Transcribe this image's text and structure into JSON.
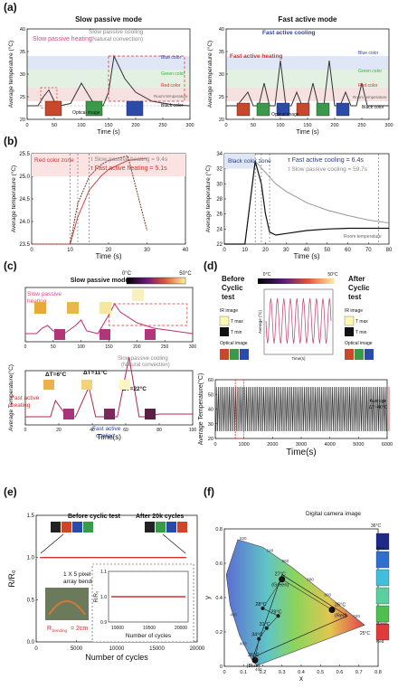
{
  "panel_labels": {
    "a": "(a)",
    "b": "(b)",
    "c": "(c)",
    "d": "(d)",
    "e": "(e)",
    "f": "(f)"
  },
  "colors": {
    "red": "#d62f2f",
    "green": "#3cae3c",
    "blue": "#2a3fb3",
    "grey": "#888888",
    "navy": "#2a3b8f",
    "pink": "#d54c8c"
  },
  "chart_data": [
    {
      "id": "a_left",
      "type": "line",
      "title": "Slow passive mode",
      "xlabel": "Time (s)",
      "ylabel": "Average temperature (°C)",
      "xlim": [
        0,
        300
      ],
      "ylim": [
        20,
        40
      ],
      "xticks": [
        "0",
        "50",
        "100",
        "150",
        "200",
        "250",
        "300"
      ],
      "yticks": [
        "20",
        "25",
        "30",
        "35",
        "40"
      ],
      "annotations": [
        "Slow passive heating",
        "Slow passive cooling (Natural convection)",
        "Blue color zone",
        "Green color zone",
        "Red color zone",
        "Room temperature",
        "Black color zone",
        "Optical image"
      ],
      "series": [
        {
          "x": [
            0,
            20,
            30,
            40,
            50,
            60,
            80,
            100,
            120,
            140,
            150,
            160,
            170,
            180,
            200,
            230,
            270,
            300
          ],
          "y": [
            23,
            23,
            25,
            26.5,
            24,
            23,
            23.5,
            28,
            24,
            23,
            26,
            34,
            31.5,
            29,
            26,
            24,
            23.2,
            23
          ]
        }
      ]
    },
    {
      "id": "a_right",
      "type": "line",
      "title": "Fast active mode",
      "xlabel": "Time (s)",
      "ylabel": "Average temperature (°C)",
      "xlim": [
        0,
        300
      ],
      "ylim": [
        20,
        40
      ],
      "xticks": [
        "0",
        "50",
        "100",
        "150",
        "200",
        "250",
        "300"
      ],
      "yticks": [
        "20",
        "25",
        "30",
        "35",
        "40"
      ],
      "annotations": [
        "Fast active heating",
        "Fast active cooling",
        "Blue color zone",
        "Green color zone",
        "Red color zone",
        "Room temperature",
        "Black color zone",
        "Optical image"
      ],
      "series": [
        {
          "x": [
            0,
            20,
            40,
            50,
            60,
            70,
            80,
            90,
            100,
            110,
            120,
            130,
            140,
            150,
            160,
            170,
            180,
            190,
            200,
            210,
            220,
            230,
            240,
            250,
            260,
            270,
            300
          ],
          "y": [
            23,
            23,
            26,
            23,
            23,
            28,
            23,
            23,
            33,
            23,
            23,
            26,
            23,
            23,
            28,
            23,
            23,
            33,
            23,
            23,
            26,
            23,
            23,
            28,
            23,
            23,
            23
          ]
        }
      ]
    },
    {
      "id": "b_left",
      "type": "line",
      "xlabel": "Time (s)",
      "ylabel": "Average temperature (°C)",
      "xlim": [
        0,
        40
      ],
      "ylim": [
        23.5,
        25.5
      ],
      "xticks": [
        "0",
        "10",
        "20",
        "30",
        "40"
      ],
      "yticks": [
        "23.5",
        "24.0",
        "24.5",
        "25.0",
        "25.5"
      ],
      "annotations": [
        "Red color zone",
        "τ Slow passive heating = 9.4s",
        "τ Fast active heating = 5.1s"
      ],
      "series": [
        {
          "name": "Slow passive heating",
          "x": [
            0,
            10,
            12,
            15,
            18,
            20,
            25,
            30
          ],
          "y": [
            23.5,
            23.5,
            24.1,
            24.7,
            25.0,
            25.15,
            25.35,
            25.4
          ]
        },
        {
          "name": "Fast active heating",
          "x": [
            0,
            10,
            12,
            15,
            18,
            20,
            25,
            30
          ],
          "y": [
            23.5,
            23.5,
            24.4,
            25.0,
            25.25,
            25.35,
            25.45,
            23.8
          ]
        }
      ]
    },
    {
      "id": "b_right",
      "type": "line",
      "xlabel": "Time (s)",
      "ylabel": "Average temperature (°C)",
      "xlim": [
        0,
        80
      ],
      "ylim": [
        22,
        34
      ],
      "xticks": [
        "0",
        "10",
        "20",
        "30",
        "40",
        "50",
        "60",
        "70",
        "80"
      ],
      "yticks": [
        "22",
        "24",
        "26",
        "28",
        "30",
        "32",
        "34"
      ],
      "annotations": [
        "Black color zone",
        "τ Fast active cooling = 6.4s",
        "τ Slow passive cooling = 59.7s",
        "Room temperature"
      ],
      "series": [
        {
          "name": "Fast active cooling",
          "x": [
            0,
            10,
            15,
            18,
            20,
            22,
            25,
            30,
            40,
            50,
            60,
            70,
            80
          ],
          "y": [
            22,
            22,
            33,
            30,
            26,
            23.6,
            23.2,
            23.4,
            23.8,
            24.0,
            24.1,
            24.1,
            24.1
          ]
        },
        {
          "name": "Slow passive cooling",
          "x": [
            0,
            10,
            15,
            20,
            25,
            30,
            40,
            50,
            60,
            70,
            80
          ],
          "y": [
            22,
            22,
            33,
            31.5,
            30,
            29,
            27.5,
            26.5,
            25.8,
            25.2,
            24.8
          ]
        }
      ]
    },
    {
      "id": "c_top",
      "type": "line",
      "title": "Slow passive mode",
      "xlabel": "",
      "ylabel": "",
      "xlim": [
        0,
        300
      ],
      "ylim": [
        20,
        40
      ],
      "xticks": [
        "0",
        "50",
        "100",
        "150",
        "200",
        "250",
        "300"
      ],
      "colorbar": [
        "0°C",
        "50°C"
      ],
      "annotations": [
        "Slow passive heating",
        "Slow passive cooling (Natural convection)",
        "Room temperature"
      ],
      "series": [
        {
          "x": [
            0,
            20,
            30,
            40,
            50,
            70,
            90,
            100,
            110,
            130,
            150,
            160,
            170,
            200,
            230,
            300
          ],
          "y": [
            23,
            23,
            25,
            26,
            24,
            23,
            26,
            28,
            24,
            23,
            30,
            34,
            31,
            27,
            25,
            23
          ]
        }
      ]
    },
    {
      "id": "c_bottom",
      "type": "line",
      "xlabel": "Time(s)",
      "ylabel": "Average Temperature(°C)",
      "xlim": [
        0,
        100
      ],
      "ylim": [
        20,
        40
      ],
      "xticks": [
        "0",
        "20",
        "40",
        "60",
        "80",
        "100"
      ],
      "annotations": [
        "ΔT=6°C",
        "ΔT=11°C",
        "ΔT=22°C",
        "Fast active heating",
        "Fast active cooling",
        "Room temperature"
      ],
      "series": [
        {
          "x": [
            0,
            15,
            18,
            25,
            30,
            38,
            42,
            50,
            55,
            62,
            68,
            72,
            80,
            90,
            100
          ],
          "y": [
            23,
            23,
            29,
            23,
            23,
            34,
            23,
            23,
            23,
            45,
            23,
            23,
            24,
            24,
            24
          ]
        }
      ]
    },
    {
      "id": "d",
      "type": "line",
      "xlabel": "Time(s)",
      "ylabel": "Average Temperature(°C)",
      "xlim": [
        0,
        6000
      ],
      "ylim": [
        20,
        60
      ],
      "xticks": [
        "0",
        "1000",
        "2000",
        "3000",
        "4000",
        "5000",
        "6000"
      ],
      "yticks": [
        "20",
        "30",
        "40",
        "50",
        "60"
      ],
      "annotations": [
        "Before Cyclic test",
        "After Cyclic test",
        "IR image",
        "T max",
        "T min",
        "Optical image",
        "Average ΔT~40°C"
      ],
      "colorbar": [
        "0°C",
        "50°C"
      ],
      "series": [
        {
          "name": "Cyclic test",
          "x": [
            0,
            6000
          ],
          "y": [
            25,
            55
          ]
        }
      ],
      "inset": {
        "xlabel": "Time(s)",
        "ylabel": "Average (°C)",
        "cycles": 10
      }
    },
    {
      "id": "e",
      "type": "line",
      "xlabel": "Number of cycles",
      "ylabel": "R/R₀",
      "xlim": [
        -500,
        21500
      ],
      "ylim": [
        0,
        1.5
      ],
      "xticks": [
        "0",
        "5000",
        "10000",
        "15000",
        "20000"
      ],
      "yticks": [
        "0.0",
        "0.5",
        "1.0",
        "1.5"
      ],
      "annotations": [
        "Before cyclic test",
        "After 20k cycles",
        "1 X 5 pixel array bending",
        "R bending = 2cm"
      ],
      "series": [
        {
          "x": [
            0,
            20000
          ],
          "y": [
            1.0,
            1.0
          ]
        }
      ],
      "inset": {
        "xlabel": "Number of cycles",
        "ylabel": "R/R₀",
        "xticks": [
          "19000",
          "19500",
          "20000"
        ],
        "yticks": [
          "0.9",
          "1.0",
          "1.1"
        ]
      }
    },
    {
      "id": "f",
      "type": "scatter",
      "xlabel": "x",
      "ylabel": "y",
      "xlim": [
        0,
        0.8
      ],
      "ylim": [
        0,
        0.9
      ],
      "xticks": [
        "0",
        "0.1",
        "0.2",
        "0.3",
        "0.4",
        "0.5",
        "0.6",
        "0.7",
        "0.8"
      ],
      "yticks": [
        "0",
        "0.2",
        "0.4",
        "0.6",
        "0.8"
      ],
      "title": "Digital camera image",
      "points": [
        {
          "label": "27°C (Green)",
          "x": 0.3,
          "y": 0.57
        },
        {
          "label": "28°C",
          "x": 0.2,
          "y": 0.38
        },
        {
          "label": "29°C",
          "x": 0.28,
          "y": 0.33
        },
        {
          "label": "31°C",
          "x": 0.22,
          "y": 0.25
        },
        {
          "label": "34°C",
          "x": 0.18,
          "y": 0.18
        },
        {
          "label": "36°C (Blue)",
          "x": 0.16,
          "y": 0.04
        },
        {
          "label": "26°C (Red)",
          "x": 0.56,
          "y": 0.37
        }
      ],
      "colorbar": [
        "36°C",
        "Blue",
        "Green",
        "Red",
        "25°C"
      ],
      "wavelengths": [
        "520",
        "540",
        "560",
        "580",
        "600",
        "620",
        "490",
        "480",
        "460"
      ]
    }
  ]
}
